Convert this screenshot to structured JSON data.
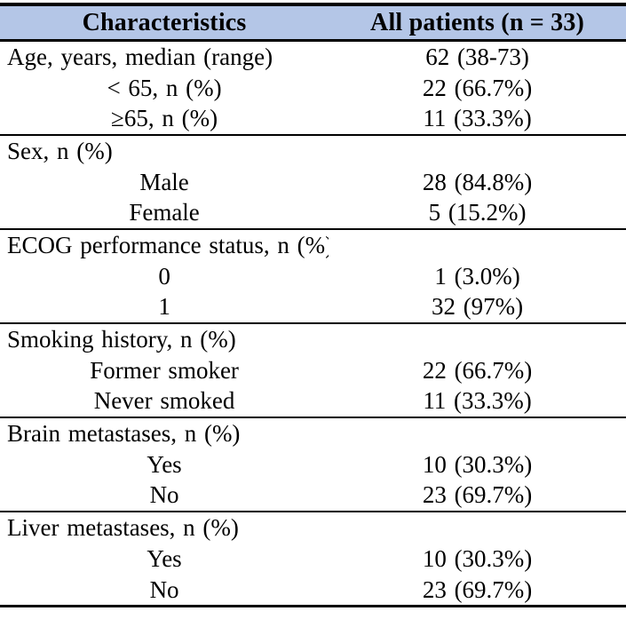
{
  "colors": {
    "header_bg": "#b4c6e7",
    "rule_color": "#000000",
    "text_color": "#000000"
  },
  "table": {
    "header": {
      "characteristics": "Characteristics",
      "all_patients": "All patients (n = 33)"
    },
    "sections": [
      {
        "rows": [
          {
            "label": "Age, years, median (range)",
            "value": "62 (38-73)",
            "type": "category"
          },
          {
            "label": "< 65, n (%)",
            "value": "22 (66.7%)",
            "type": "sub"
          },
          {
            "label": "≥65, n (%)",
            "value": "11 (33.3%)",
            "type": "sub"
          }
        ]
      },
      {
        "rows": [
          {
            "label": "Sex, n (%)",
            "value": "",
            "type": "category"
          },
          {
            "label": "Male",
            "value": "28 (84.8%)",
            "type": "sub"
          },
          {
            "label": "Female",
            "value": "5 (15.2%)",
            "type": "sub"
          }
        ]
      },
      {
        "rows": [
          {
            "label": "ECOG performance status, n (%)",
            "value": "",
            "type": "category"
          },
          {
            "label": "0",
            "value": "1 (3.0%)",
            "type": "sub"
          },
          {
            "label": "1",
            "value": "32 (97%)",
            "type": "sub"
          }
        ]
      },
      {
        "rows": [
          {
            "label": "Smoking history, n (%)",
            "value": "",
            "type": "category"
          },
          {
            "label": "Former smoker",
            "value": "22 (66.7%)",
            "type": "sub"
          },
          {
            "label": "Never smoked",
            "value": "11 (33.3%)",
            "type": "sub"
          }
        ]
      },
      {
        "rows": [
          {
            "label": "Brain metastases, n (%)",
            "value": "",
            "type": "category"
          },
          {
            "label": "Yes",
            "value": "10 (30.3%)",
            "type": "sub"
          },
          {
            "label": "No",
            "value": "23 (69.7%)",
            "type": "sub"
          }
        ]
      },
      {
        "rows": [
          {
            "label": "Liver metastases, n (%)",
            "value": "",
            "type": "category"
          },
          {
            "label": "Yes",
            "value": "10 (30.3%)",
            "type": "sub"
          },
          {
            "label": "No",
            "value": "23 (69.7%)",
            "type": "sub"
          }
        ]
      }
    ]
  }
}
